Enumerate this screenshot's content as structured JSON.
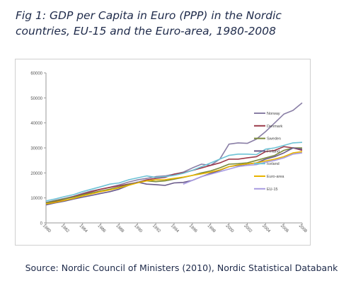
{
  "figure": {
    "title_line1": "Fig 1: GDP per Capita in Euro (PPP) in the Nordic",
    "title_line2": "countries, EU-15 and the Euro-area, 1980-2008",
    "source": "Source: Nordic Council of Ministers (2010), Nordic Statistical Databank"
  },
  "chart_data": {
    "type": "line",
    "title": "Fig 1: GDP per Capita in Euro (PPP) in the Nordic countries, EU-15 and the Euro-area, 1980-2008",
    "xlabel": "",
    "ylabel": "",
    "x": [
      1980,
      1981,
      1982,
      1983,
      1984,
      1985,
      1986,
      1987,
      1988,
      1989,
      1990,
      1991,
      1992,
      1993,
      1994,
      1995,
      1996,
      1997,
      1998,
      1999,
      2000,
      2001,
      2002,
      2003,
      2004,
      2005,
      2006,
      2007,
      2008
    ],
    "xticks": [
      1980,
      1982,
      1984,
      1986,
      1988,
      1990,
      1992,
      1994,
      1996,
      1998,
      2000,
      2002,
      2004,
      2006,
      2008
    ],
    "ylim": [
      0,
      60000
    ],
    "yticks": [
      0,
      10000,
      20000,
      30000,
      40000,
      50000,
      60000
    ],
    "grid": false,
    "legend_position": "right",
    "series": [
      {
        "name": "Norway",
        "color": "#8a7fa6",
        "values": [
          8200,
          9000,
          9800,
          10600,
          11800,
          12800,
          13500,
          14300,
          15200,
          16300,
          17200,
          17800,
          18500,
          18800,
          19500,
          20300,
          22000,
          23500,
          23000,
          25500,
          31500,
          32000,
          31800,
          33500,
          36500,
          40000,
          43500,
          45000,
          48000
        ]
      },
      {
        "name": "Denmark",
        "color": "#9b3a4a",
        "values": [
          7800,
          8500,
          9500,
          10500,
          11500,
          12500,
          13500,
          14200,
          14800,
          15500,
          16200,
          17200,
          17800,
          18200,
          19500,
          20000,
          21000,
          22000,
          23000,
          24000,
          25500,
          25500,
          26000,
          26500,
          28500,
          29000,
          30500,
          30000,
          29000
        ]
      },
      {
        "name": "Sweden",
        "color": "#7a8a3a",
        "values": [
          8000,
          8800,
          9600,
          10300,
          11200,
          12000,
          12800,
          13500,
          14300,
          15300,
          16200,
          16800,
          16500,
          16800,
          17500,
          18200,
          19000,
          20000,
          20800,
          22000,
          23500,
          23700,
          24000,
          25000,
          26000,
          27000,
          29000,
          30000,
          30000
        ]
      },
      {
        "name": "Finland",
        "color": "#6a5a8a",
        "values": [
          7200,
          8000,
          8700,
          9500,
          10300,
          11000,
          11800,
          12500,
          13500,
          15000,
          16300,
          15500,
          15300,
          15000,
          16000,
          16200,
          17000,
          18500,
          19800,
          21000,
          22500,
          23000,
          23500,
          24000,
          25500,
          26500,
          28000,
          30000,
          29500
        ]
      },
      {
        "name": "Iceland",
        "color": "#6ec3d6",
        "values": [
          8800,
          9600,
          10500,
          11300,
          12500,
          13500,
          14500,
          15500,
          16000,
          17200,
          18000,
          18800,
          18200,
          18500,
          19000,
          19800,
          21000,
          22500,
          24000,
          25500,
          27000,
          27500,
          27500,
          27300,
          29500,
          30000,
          31000,
          32000,
          32200
        ]
      },
      {
        "name": "Euro-area",
        "color": "#e8b400",
        "values": [
          7600,
          8200,
          9000,
          9800,
          10800,
          11600,
          12500,
          13200,
          14000,
          15000,
          16000,
          16800,
          17200,
          17300,
          17800,
          18300,
          19000,
          19600,
          20300,
          21200,
          22500,
          23200,
          23600,
          24000,
          24800,
          25500,
          26500,
          28000,
          28500
        ]
      },
      {
        "name": "EU-15",
        "color": "#a89be0",
        "values": [
          null,
          null,
          null,
          null,
          null,
          null,
          null,
          null,
          null,
          null,
          null,
          null,
          null,
          null,
          null,
          15500,
          17000,
          18500,
          19500,
          20500,
          21500,
          22500,
          23000,
          23300,
          24300,
          25000,
          26000,
          27500,
          28000
        ]
      }
    ]
  }
}
